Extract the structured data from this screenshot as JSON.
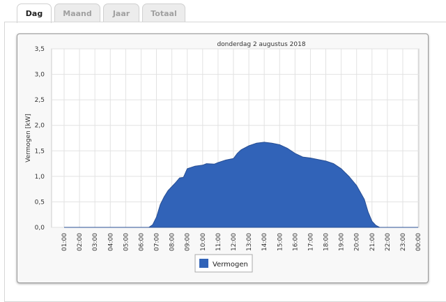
{
  "tabs": [
    {
      "label": "Dag",
      "active": true
    },
    {
      "label": "Maand"
    },
    {
      "label": "Jaar"
    },
    {
      "label": "Totaal"
    }
  ],
  "chart_data": {
    "type": "area",
    "title": "donderdag 2 augustus 2018",
    "ylabel": "Vermogen [kW]",
    "xlabel": "",
    "ylim": [
      0,
      3.5
    ],
    "yticks": [
      "0,0",
      "0,5",
      "1,0",
      "1,5",
      "2,0",
      "2,5",
      "3,0",
      "3,5"
    ],
    "xticks": [
      "01:00",
      "02:00",
      "03:00",
      "04:00",
      "05:00",
      "06:00",
      "07:00",
      "08:00",
      "09:00",
      "10:00",
      "11:00",
      "12:00",
      "13:00",
      "14:00",
      "15:00",
      "16:00",
      "17:00",
      "18:00",
      "19:00",
      "20:00",
      "21:00",
      "22:00",
      "23:00",
      "00:00"
    ],
    "grid": true,
    "legend": {
      "position": "bottom",
      "entries": [
        "Vermogen"
      ]
    },
    "color": "#3163b8",
    "series": [
      {
        "name": "Vermogen",
        "x_hours": [
          1,
          6.5,
          6.75,
          7,
          7.25,
          7.5,
          7.75,
          8,
          8.25,
          8.5,
          8.75,
          9,
          9.5,
          10,
          10.25,
          10.75,
          11,
          11.5,
          12,
          12.25,
          12.5,
          13,
          13.5,
          14,
          14.5,
          15,
          15.5,
          16,
          16.5,
          17,
          17.5,
          18,
          18.5,
          19,
          19.5,
          20,
          20.5,
          20.75,
          21,
          21.25,
          21.5,
          24
        ],
        "values": [
          0,
          0,
          0.05,
          0.2,
          0.45,
          0.6,
          0.72,
          0.8,
          0.88,
          0.97,
          0.98,
          1.15,
          1.2,
          1.22,
          1.25,
          1.24,
          1.27,
          1.32,
          1.35,
          1.45,
          1.52,
          1.6,
          1.65,
          1.67,
          1.65,
          1.62,
          1.55,
          1.45,
          1.38,
          1.36,
          1.33,
          1.3,
          1.25,
          1.15,
          1.0,
          0.82,
          0.55,
          0.3,
          0.12,
          0.04,
          0,
          0
        ]
      }
    ]
  }
}
